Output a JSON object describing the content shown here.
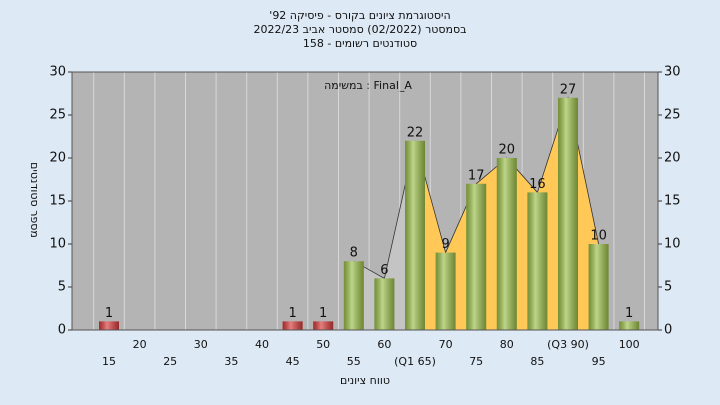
{
  "chart_data": {
    "type": "bar",
    "title": [
      "'היסטוגרמת ציונים בקורס - פיסיקה 92",
      "בסמסטר  (02/2022)  סמסטר אביב 2022/23",
      "סטודנטים רשומים - 158"
    ],
    "annotation": "במשימה : Final_A",
    "x_label": "טווח ציונים",
    "y_label": "מספר סטודנטים",
    "categories": [
      "15",
      "20",
      "25",
      "30",
      "35",
      "40",
      "45",
      "50",
      "55",
      "60",
      "(Q1 65)",
      "70",
      "75",
      "80",
      "85",
      "(Q3 90)",
      "95",
      "100"
    ],
    "values": [
      1,
      0,
      0,
      0,
      0,
      0,
      1,
      1,
      8,
      6,
      22,
      9,
      17,
      20,
      16,
      27,
      10,
      1
    ],
    "colors": [
      "#d83a3a",
      "#d83a3a",
      "#d83a3a",
      "#d83a3a",
      "#d83a3a",
      "#d83a3a",
      "#d83a3a",
      "#d83a3a",
      "#9cc04a",
      "#9cc04a",
      "#9cc04a",
      "#9cc04a",
      "#9cc04a",
      "#9cc04a",
      "#9cc04a",
      "#9cc04a",
      "#9cc04a",
      "#9cc04a"
    ],
    "ylim": [
      0,
      30
    ],
    "yticks": [
      0,
      5,
      10,
      15,
      20,
      25,
      30
    ],
    "grid": true
  }
}
